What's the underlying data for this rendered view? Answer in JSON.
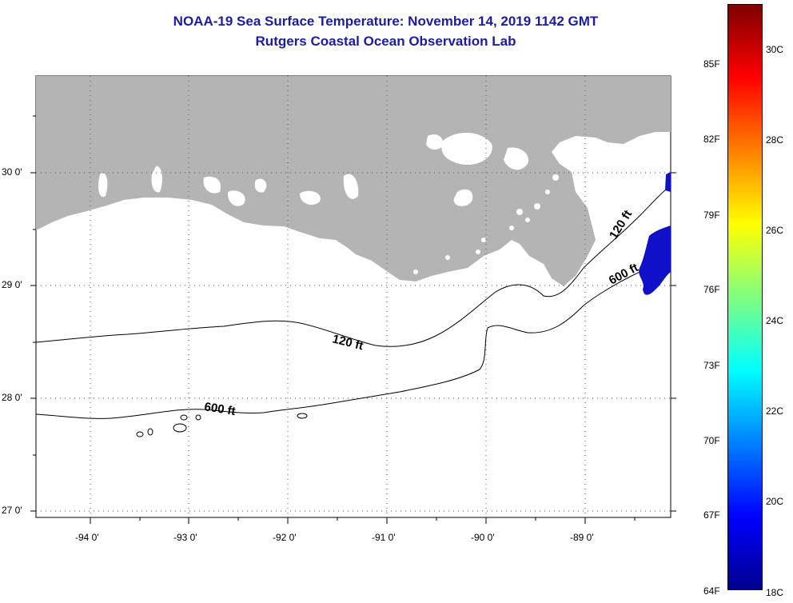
{
  "title": {
    "line1": "NOAA-19 Sea Surface Temperature:  November 14, 2019 1142 GMT",
    "line2": "Rutgers Coastal Ocean Observation Lab"
  },
  "map": {
    "lat_labels": [
      "30 0'",
      "29 0'",
      "28 0'",
      "27 0'"
    ],
    "lon_labels": [
      "-94 0'",
      "-93 0'",
      "-92 0'",
      "-91 0'",
      "-90 0'",
      "-89 0'"
    ],
    "contour_labels": [
      "120 ft",
      "600 ft",
      "120 ft",
      "600 ft"
    ],
    "land_color": "#b4b4b4",
    "sst_patch_color": "#1010c8"
  },
  "colorbar": {
    "f_labels": [
      "85F",
      "82F",
      "79F",
      "76F",
      "73F",
      "70F",
      "67F",
      "64F"
    ],
    "c_labels": [
      "30C",
      "28C",
      "26C",
      "24C",
      "22C",
      "20C",
      "18C"
    ],
    "gradient": [
      "#7f0000",
      "#ff0000",
      "#ff8000",
      "#ffff00",
      "#80ff80",
      "#00ffff",
      "#0080ff",
      "#0000ff",
      "#00008f"
    ]
  }
}
